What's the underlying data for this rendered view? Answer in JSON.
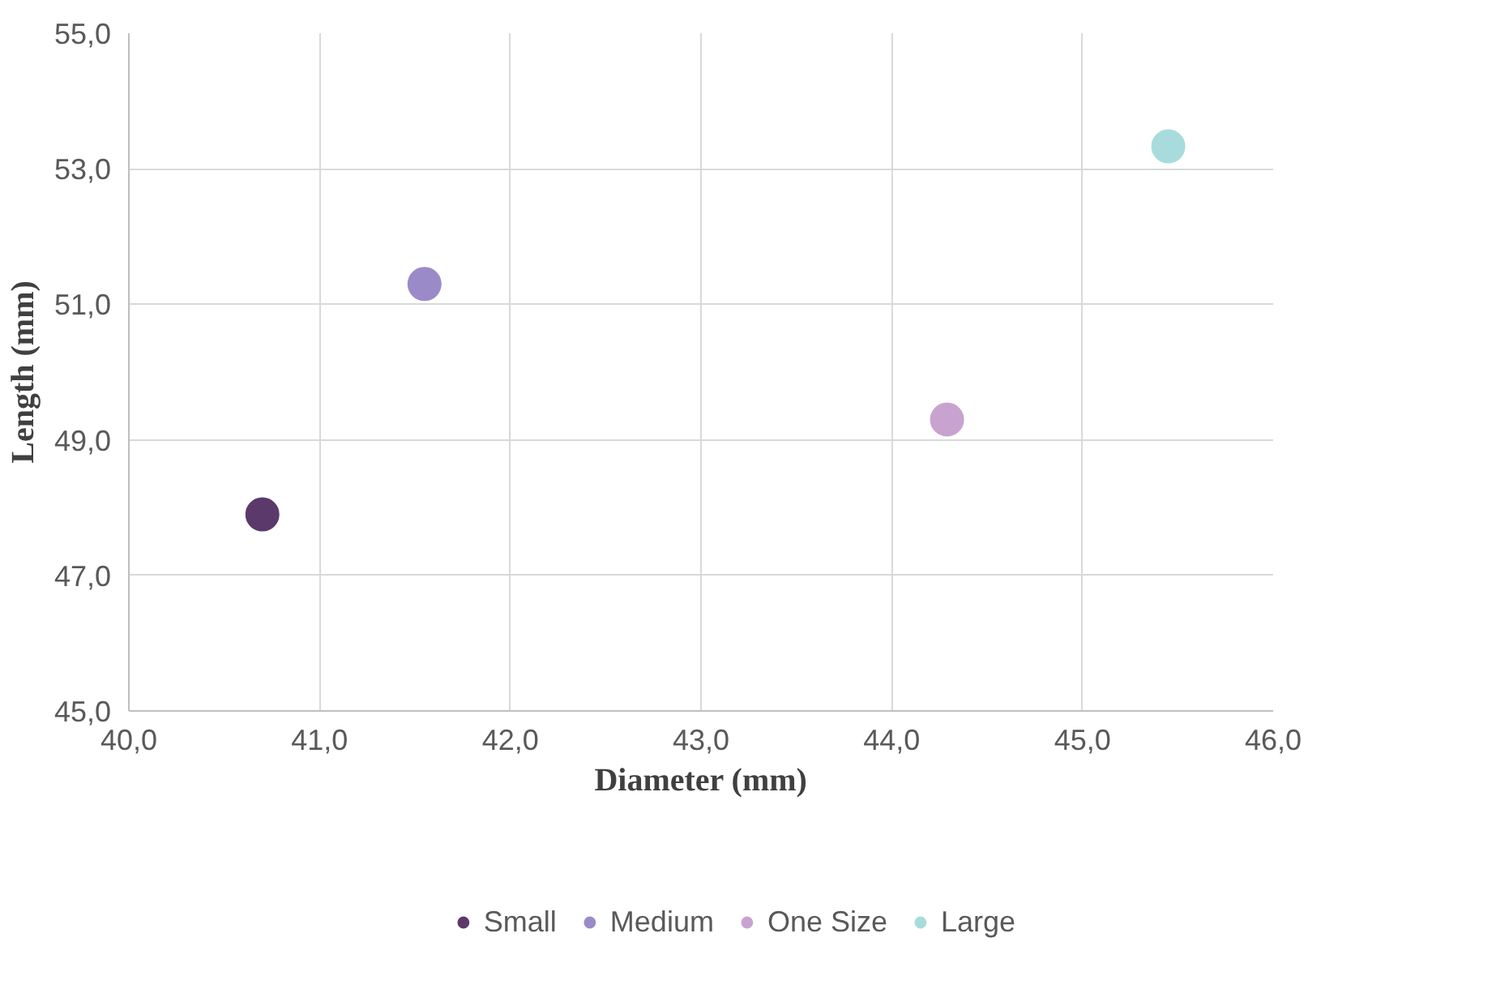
{
  "chart_data": {
    "type": "scatter",
    "xlabel": "Diameter (mm)",
    "ylabel": "Length (mm)",
    "xlim": [
      40,
      46
    ],
    "ylim": [
      45,
      55
    ],
    "xticks": [
      {
        "value": 40,
        "label": "40,0"
      },
      {
        "value": 41,
        "label": "41,0"
      },
      {
        "value": 42,
        "label": "42,0"
      },
      {
        "value": 43,
        "label": "43,0"
      },
      {
        "value": 44,
        "label": "44,0"
      },
      {
        "value": 45,
        "label": "45,0"
      },
      {
        "value": 46,
        "label": "46,0"
      }
    ],
    "yticks": [
      {
        "value": 45,
        "label": "45,0"
      },
      {
        "value": 47,
        "label": "47,0"
      },
      {
        "value": 49,
        "label": "49,0"
      },
      {
        "value": 51,
        "label": "51,0"
      },
      {
        "value": 53,
        "label": "53,0"
      },
      {
        "value": 55,
        "label": "55,0"
      }
    ],
    "grid": true,
    "legend": "bottom",
    "marker": "circle",
    "series": [
      {
        "name": "Small",
        "color": "#5b3a6b",
        "x": [
          40.7
        ],
        "values": [
          47.9
        ]
      },
      {
        "name": "Medium",
        "color": "#9b8ac8",
        "x": [
          41.55
        ],
        "values": [
          51.3
        ]
      },
      {
        "name": "One Size",
        "color": "#c9a3cf",
        "x": [
          44.29
        ],
        "values": [
          49.3
        ]
      },
      {
        "name": "Large",
        "color": "#a8dcdc",
        "x": [
          45.45
        ],
        "values": [
          53.33
        ]
      }
    ]
  }
}
